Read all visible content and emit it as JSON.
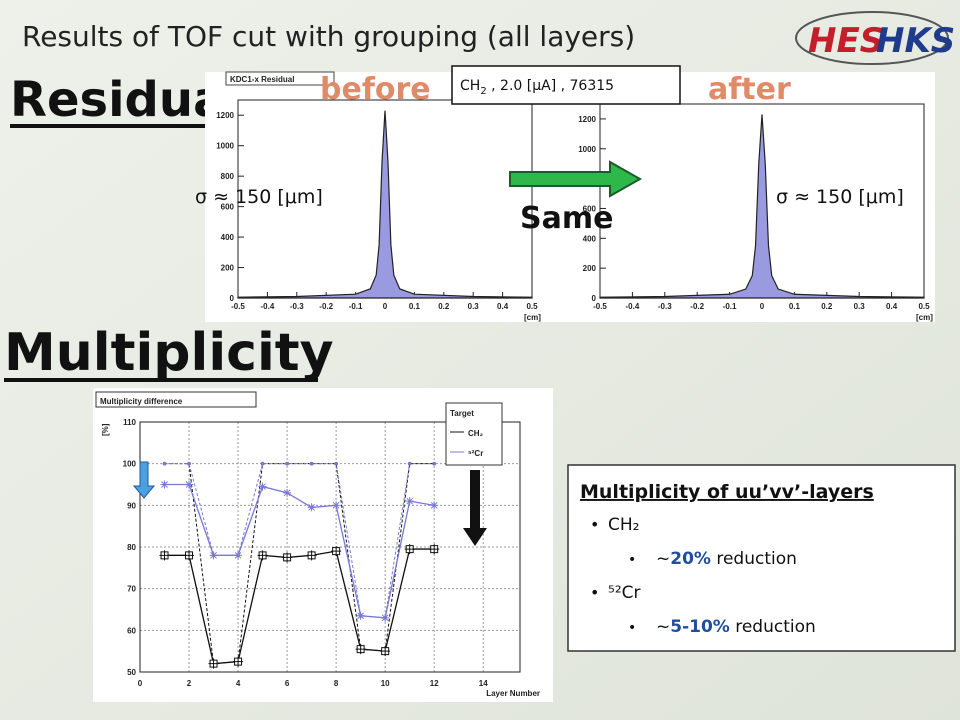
{
  "header": {
    "title": "Results of TOF cut with grouping (all layers)",
    "logo": [
      "HES",
      "HKS"
    ]
  },
  "residual": {
    "heading": "Residual",
    "before_label": "before",
    "after_label": "after",
    "condition": {
      "prefix": "CH",
      "sub": "2",
      "rest": " , 2.0 [μA] , 76315"
    },
    "sigma_before": "σ ≈ 150 [μm]",
    "sigma_after": "σ ≈ 150 [μm]",
    "arrow_label": "Same",
    "charts": [
      {
        "type": "area",
        "title": "KDC1-x Residual",
        "xlabel": "[cm]",
        "color": "#9a9ae0",
        "x": [
          -0.5,
          -0.3,
          -0.1,
          -0.05,
          -0.03,
          -0.02,
          -0.01,
          0,
          0.01,
          0.02,
          0.03,
          0.05,
          0.1,
          0.3,
          0.5
        ],
        "values": [
          5,
          10,
          25,
          60,
          150,
          350,
          900,
          1230,
          900,
          350,
          150,
          60,
          25,
          10,
          5
        ],
        "xlim": [
          -0.5,
          0.5
        ],
        "xticks": [
          -0.5,
          -0.4,
          -0.3,
          -0.2,
          -0.1,
          0,
          0.1,
          0.2,
          0.3,
          0.4,
          0.5
        ],
        "ylim": [
          0,
          1300
        ],
        "yticks": [
          0,
          200,
          400,
          600,
          800,
          1000,
          1200
        ]
      },
      {
        "type": "area",
        "xlabel": "[cm]",
        "color": "#9a9ae0",
        "x": [
          -0.5,
          -0.3,
          -0.1,
          -0.05,
          -0.03,
          -0.02,
          -0.01,
          0,
          0.01,
          0.02,
          0.03,
          0.05,
          0.1,
          0.3,
          0.5
        ],
        "values": [
          5,
          10,
          25,
          60,
          150,
          350,
          900,
          1230,
          900,
          350,
          150,
          60,
          25,
          10,
          5
        ],
        "xlim": [
          -0.5,
          0.5
        ],
        "xticks": [
          -0.5,
          -0.4,
          -0.3,
          -0.2,
          -0.1,
          0,
          0.1,
          0.2,
          0.3,
          0.4,
          0.5
        ],
        "ylim": [
          0,
          1300
        ],
        "yticks": [
          0,
          200,
          400,
          600,
          800,
          1000,
          1200
        ]
      }
    ]
  },
  "multiplicity": {
    "heading": "Multiplicity",
    "chart": {
      "type": "line",
      "title": "Multiplicity difference",
      "ylabel": "[%]",
      "xlabel": "Layer Number",
      "legend_title": "Target",
      "grid": true,
      "x": [
        1,
        2,
        3,
        4,
        5,
        6,
        7,
        8,
        9,
        10,
        11,
        12
      ],
      "series": [
        {
          "name": "CH₂",
          "color": "#111111",
          "values": [
            78,
            78,
            52,
            52.5,
            78,
            77.5,
            78,
            79,
            55.5,
            55,
            79.5,
            79.5
          ]
        },
        {
          "name": "⁵²Cr",
          "color": "#7878d8",
          "values": [
            95,
            95,
            78,
            78,
            94.5,
            93,
            89.5,
            90,
            63.5,
            63,
            91,
            90
          ]
        }
      ],
      "before_series": [
        {
          "color": "#111111",
          "values": [
            100,
            100,
            52,
            52.5,
            100,
            100,
            100,
            100,
            55.5,
            55,
            100,
            100
          ]
        },
        {
          "color": "#7878d8",
          "values": [
            100,
            100,
            78,
            78,
            100,
            100,
            100,
            100,
            63.5,
            63,
            100,
            100
          ]
        }
      ],
      "xlim": [
        0,
        15.5
      ],
      "xticks": [
        0,
        2,
        4,
        6,
        8,
        10,
        12,
        14
      ],
      "ylim": [
        50,
        110
      ],
      "yticks": [
        50,
        60,
        70,
        80,
        90,
        100,
        110
      ]
    },
    "note": {
      "title": "Multiplicity of uu’vv’-layers",
      "items": [
        {
          "label": "CH₂",
          "detail": {
            "prefix": "~",
            "amount": "20%",
            "suffix": " reduction"
          }
        },
        {
          "label": "⁵²Cr",
          "detail": {
            "prefix": "~",
            "amount": "5-10%",
            "suffix": " reduction"
          }
        }
      ]
    }
  }
}
